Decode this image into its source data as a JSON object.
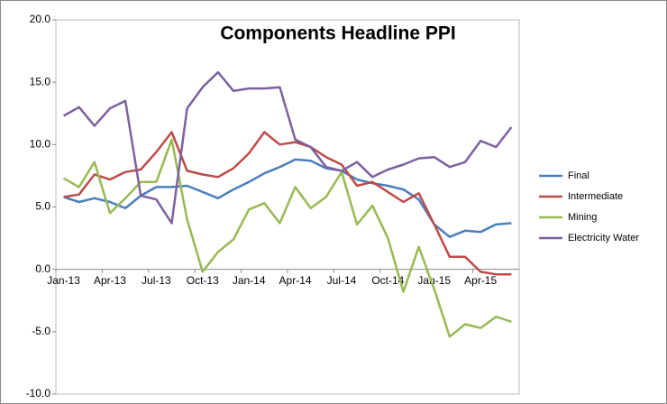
{
  "chart_data": {
    "type": "line",
    "title": "Components Headline PPI",
    "categories": [
      "Jan-13",
      null,
      null,
      "Apr-13",
      null,
      null,
      "Jul-13",
      null,
      null,
      "Oct-13",
      null,
      null,
      "Jan-14",
      null,
      null,
      "Apr-14",
      null,
      null,
      "Jul-14",
      null,
      null,
      "Oct-14",
      null,
      null,
      "Jan-15",
      null,
      null,
      "Apr-15",
      null,
      null
    ],
    "series": [
      {
        "name": "Final",
        "color": "#4a7ebb",
        "values": [
          5.8,
          5.4,
          5.7,
          5.4,
          4.9,
          5.9,
          6.6,
          6.6,
          6.7,
          6.2,
          5.7,
          6.4,
          7.0,
          7.7,
          8.2,
          8.8,
          8.7,
          8.1,
          7.9,
          7.2,
          6.9,
          6.7,
          6.4,
          5.6,
          3.6,
          2.6,
          3.1,
          3.0,
          3.6,
          3.7
        ]
      },
      {
        "name": "Intermediate",
        "color": "#be4b48",
        "values": [
          5.8,
          6.0,
          7.6,
          7.2,
          7.8,
          8.0,
          9.4,
          11.0,
          7.9,
          7.6,
          7.4,
          8.1,
          9.3,
          11.0,
          10.0,
          10.2,
          9.8,
          9.0,
          8.4,
          6.7,
          7.0,
          6.2,
          5.4,
          6.1,
          3.6,
          1.0,
          1.0,
          -0.2,
          -0.4,
          -0.4
        ]
      },
      {
        "name": "Mining",
        "color": "#98b954",
        "values": [
          7.3,
          6.6,
          8.6,
          4.5,
          5.7,
          7.0,
          7.0,
          10.4,
          4.0,
          -0.2,
          1.4,
          2.4,
          4.8,
          5.3,
          3.7,
          6.6,
          4.9,
          5.8,
          7.8,
          3.6,
          5.1,
          2.5,
          -1.8,
          1.8,
          -1.6,
          -5.4,
          -4.4,
          -4.7,
          -3.8,
          -4.2
        ]
      },
      {
        "name": "Electricity Water",
        "color": "#7d60a0",
        "values": [
          12.3,
          13.0,
          11.5,
          12.9,
          13.5,
          5.9,
          5.6,
          3.7,
          12.9,
          14.6,
          15.8,
          14.3,
          14.5,
          14.5,
          14.6,
          10.4,
          9.8,
          8.2,
          7.9,
          8.6,
          7.4,
          8.0,
          8.4,
          8.9,
          9.0,
          8.2,
          8.6,
          10.3,
          9.8,
          11.4
        ]
      }
    ],
    "ylim": [
      -10,
      20
    ],
    "yticks": [
      {
        "value": -10,
        "label": "-10.0"
      },
      {
        "value": -5,
        "label": "-5.0"
      },
      {
        "value": 0,
        "label": "0.0"
      },
      {
        "value": 5,
        "label": "5.0"
      },
      {
        "value": 10,
        "label": "10.0"
      },
      {
        "value": 15,
        "label": "15.0"
      },
      {
        "value": 20,
        "label": "20.0"
      }
    ],
    "grid": false,
    "legend": "right"
  }
}
